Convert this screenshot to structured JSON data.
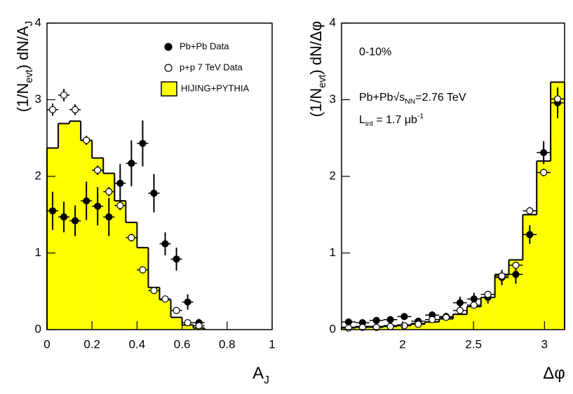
{
  "chart_data": [
    {
      "type": "histogram",
      "xlabel": {
        "parts": [
          {
            "text": "A"
          },
          {
            "text": "J",
            "sub": true
          }
        ]
      },
      "ylabel": {
        "parts": [
          {
            "text": "(1/N"
          },
          {
            "text": "evt",
            "sub": true
          },
          {
            "text": ") dN/A"
          },
          {
            "text": "J",
            "sub": true
          }
        ]
      },
      "xlim": [
        0,
        1
      ],
      "ylim": [
        0,
        4
      ],
      "xticks": [
        0,
        0.2,
        0.4,
        0.6,
        0.8,
        1
      ],
      "yticks": [
        0,
        1,
        2,
        3,
        4
      ],
      "hist_name": "HIJING+PYTHIA",
      "hist_color": "#ffff00",
      "bins": [
        0,
        0.05,
        0.1,
        0.15,
        0.2,
        0.25,
        0.3,
        0.35,
        0.4,
        0.45,
        0.5,
        0.55,
        0.6,
        0.65,
        0.7
      ],
      "counts": [
        2.37,
        2.69,
        2.72,
        2.47,
        2.24,
        2.04,
        1.68,
        1.4,
        1.07,
        0.55,
        0.39,
        0.16,
        0.06,
        0.02
      ],
      "series": [
        {
          "name": "Pb+Pb Data",
          "marker": "filled",
          "x": [
            0.025,
            0.075,
            0.125,
            0.175,
            0.225,
            0.275,
            0.325,
            0.375,
            0.425,
            0.475,
            0.525,
            0.575,
            0.625,
            0.675
          ],
          "values": [
            1.55,
            1.47,
            1.42,
            1.68,
            1.61,
            1.47,
            1.91,
            2.17,
            2.43,
            1.78,
            1.12,
            0.92,
            0.36,
            0.09
          ],
          "errors": [
            0.25,
            0.2,
            0.2,
            0.25,
            0.25,
            0.25,
            0.25,
            0.3,
            0.3,
            0.25,
            0.15,
            0.15,
            0.1,
            0.05
          ]
        },
        {
          "name": "p+p 7 TeV Data",
          "marker": "open",
          "x": [
            0.025,
            0.075,
            0.125,
            0.175,
            0.225,
            0.275,
            0.325,
            0.375,
            0.425,
            0.475,
            0.525,
            0.575,
            0.625,
            0.675
          ],
          "values": [
            2.87,
            3.06,
            2.87,
            2.47,
            2.08,
            1.8,
            1.62,
            1.2,
            0.78,
            0.51,
            0.4,
            0.25,
            0.09,
            0.05
          ],
          "errors": [
            0.08,
            0.08,
            0.07,
            0.06,
            0.06,
            0.06,
            0.06,
            0.05,
            0.04,
            0.03,
            0.03,
            0.03,
            0.02,
            0.02
          ]
        }
      ]
    },
    {
      "type": "histogram",
      "xlabel": {
        "parts": [
          {
            "text": "Δφ"
          }
        ]
      },
      "ylabel": {
        "parts": [
          {
            "text": "(1/N"
          },
          {
            "text": "evt",
            "sub": true
          },
          {
            "text": ") dN/Δφ"
          }
        ]
      },
      "xlim": [
        1.5708,
        3.1416
      ],
      "ylim": [
        0,
        4
      ],
      "xticks": [
        2,
        2.5,
        3
      ],
      "yticks": [
        0,
        1,
        2,
        3,
        4
      ],
      "annotations": [
        {
          "parts": [
            {
              "text": "0-10%"
            }
          ]
        },
        {
          "parts": [
            {
              "text": "Pb+Pb√s"
            },
            {
              "text": "NN",
              "sub": true
            },
            {
              "text": "=2.76 TeV"
            }
          ]
        },
        {
          "parts": [
            {
              "text": "L"
            },
            {
              "text": "int",
              "sub": true
            },
            {
              "text": " = 1.7 μb"
            },
            {
              "text": "-1",
              "sup": true
            }
          ]
        }
      ],
      "hist_color": "#ffff00",
      "bins": [
        1.5708,
        1.669,
        1.7671,
        1.8653,
        1.9635,
        2.0617,
        2.1598,
        2.258,
        2.3562,
        2.4544,
        2.5525,
        2.6507,
        2.7489,
        2.8471,
        2.9452,
        3.0434,
        3.1416
      ],
      "counts": [
        0.03,
        0.04,
        0.04,
        0.05,
        0.06,
        0.08,
        0.1,
        0.14,
        0.2,
        0.3,
        0.42,
        0.72,
        0.91,
        1.5,
        2.2,
        3.23
      ],
      "series": [
        {
          "marker": "filled",
          "x": [
            1.6199,
            1.7181,
            1.8162,
            1.9144,
            2.0126,
            2.1108,
            2.2089,
            2.3071,
            2.4053,
            2.5035,
            2.6016,
            2.6998,
            2.798,
            2.8962,
            2.9943,
            3.0925
          ],
          "values": [
            0.1,
            0.09,
            0.12,
            0.13,
            0.17,
            0.11,
            0.19,
            0.17,
            0.35,
            0.4,
            0.42,
            0.68,
            0.72,
            1.24,
            2.31,
            2.96
          ],
          "errors": [
            0.03,
            0.03,
            0.03,
            0.04,
            0.04,
            0.04,
            0.05,
            0.05,
            0.08,
            0.08,
            0.08,
            0.1,
            0.12,
            0.12,
            0.15,
            0.2
          ]
        },
        {
          "marker": "open",
          "x": [
            1.6199,
            1.7181,
            1.8162,
            1.9144,
            2.0126,
            2.1108,
            2.2089,
            2.3071,
            2.4053,
            2.5035,
            2.6016,
            2.6998,
            2.798,
            2.8962,
            2.9943,
            3.0925
          ],
          "values": [
            0.02,
            0.03,
            0.03,
            0.04,
            0.05,
            0.07,
            0.13,
            0.16,
            0.25,
            0.32,
            0.46,
            0.7,
            0.84,
            1.55,
            2.05,
            3.01
          ],
          "errors": [
            0.02,
            0.02,
            0.02,
            0.02,
            0.02,
            0.02,
            0.02,
            0.02,
            0.03,
            0.03,
            0.03,
            0.04,
            0.04,
            0.05,
            0.05,
            0.06
          ]
        }
      ]
    }
  ]
}
